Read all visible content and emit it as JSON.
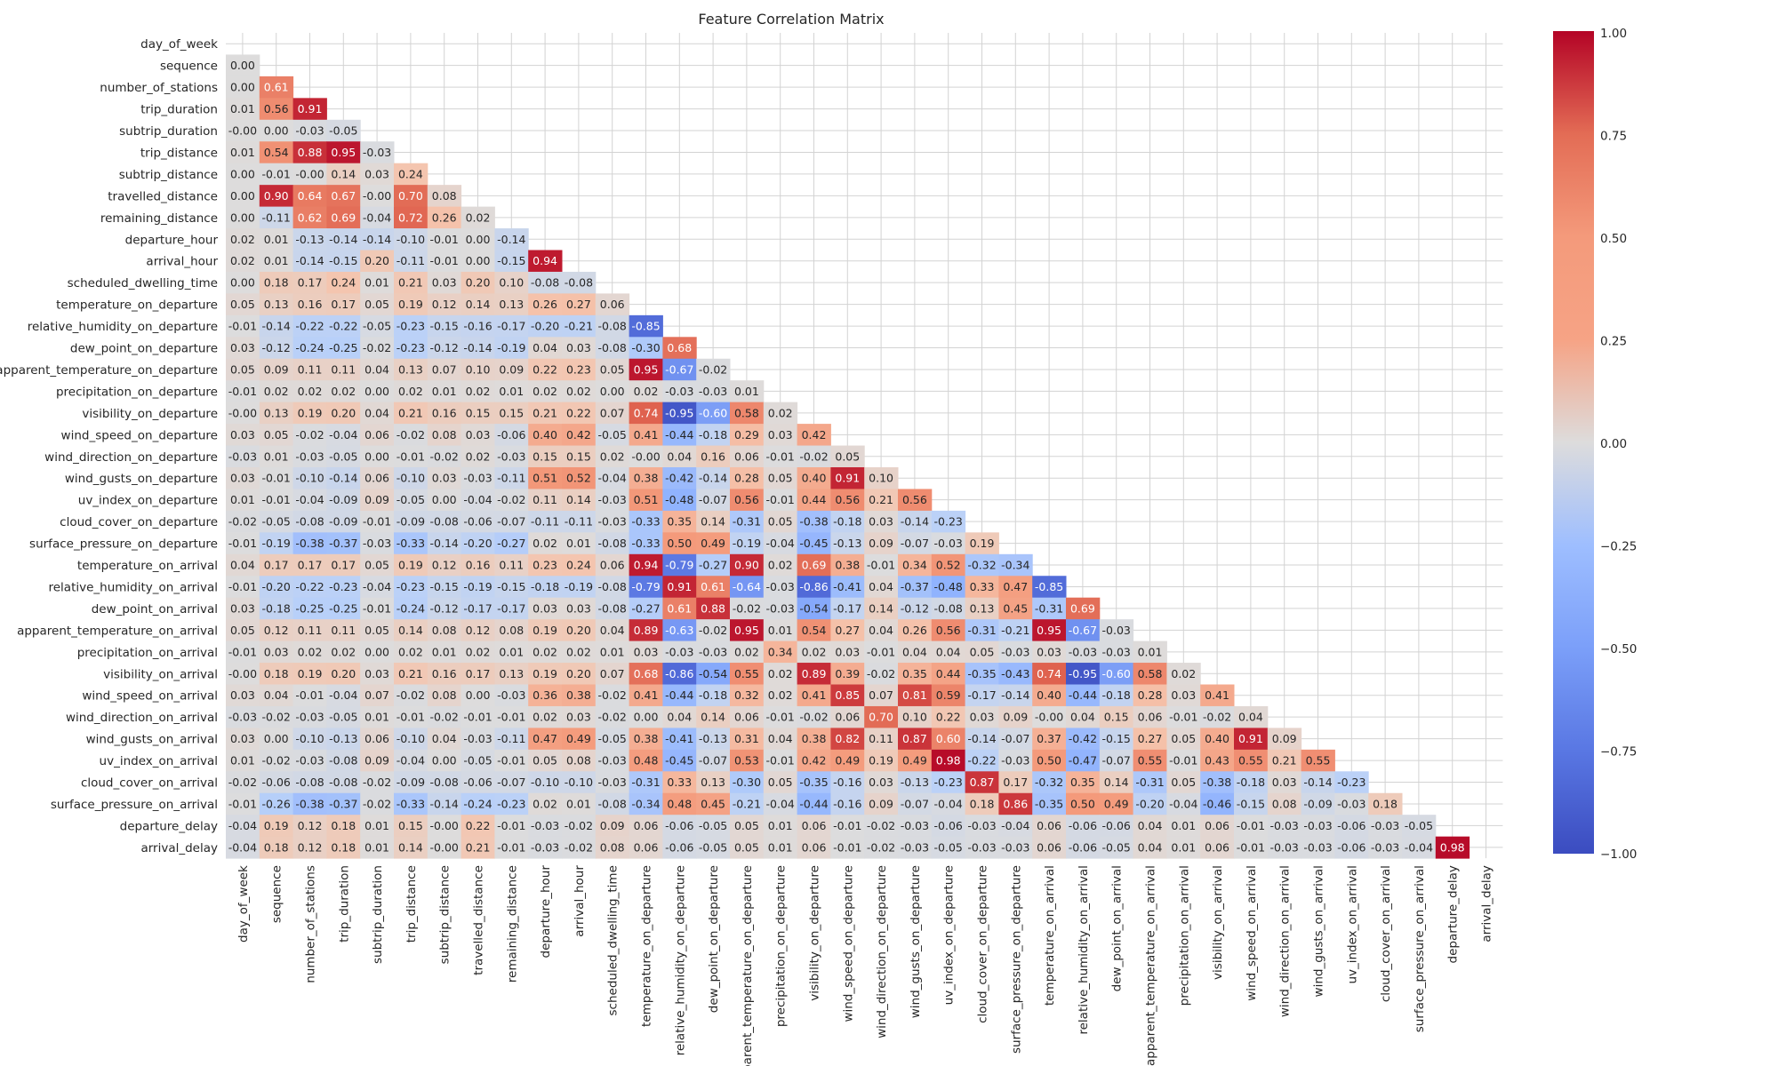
{
  "chart_data": {
    "type": "heatmap",
    "title": "Feature Correlation Matrix",
    "xlabel": "",
    "ylabel": "",
    "mask": "upper-triangle-and-diagonal",
    "colormap": "coolwarm",
    "grid": true,
    "colorbar": {
      "vmin": -1.0,
      "vmax": 1.0,
      "ticks": [
        "1.00",
        "0.75",
        "0.50",
        "0.25",
        "0.00",
        "−0.25",
        "−0.50",
        "−0.75",
        "−1.00"
      ]
    },
    "labels": [
      "day_of_week",
      "sequence",
      "number_of_stations",
      "trip_duration",
      "subtrip_duration",
      "trip_distance",
      "subtrip_distance",
      "travelled_distance",
      "remaining_distance",
      "departure_hour",
      "arrival_hour",
      "scheduled_dwelling_time",
      "temperature_on_departure",
      "relative_humidity_on_departure",
      "dew_point_on_departure",
      "apparent_temperature_on_departure",
      "precipitation_on_departure",
      "visibility_on_departure",
      "wind_speed_on_departure",
      "wind_direction_on_departure",
      "wind_gusts_on_departure",
      "uv_index_on_departure",
      "cloud_cover_on_departure",
      "surface_pressure_on_departure",
      "temperature_on_arrival",
      "relative_humidity_on_arrival",
      "dew_point_on_arrival",
      "apparent_temperature_on_arrival",
      "precipitation_on_arrival",
      "visibility_on_arrival",
      "wind_speed_on_arrival",
      "wind_direction_on_arrival",
      "wind_gusts_on_arrival",
      "uv_index_on_arrival",
      "cloud_cover_on_arrival",
      "surface_pressure_on_arrival",
      "departure_delay",
      "arrival_delay"
    ],
    "rows": [
      [],
      [
        "0.00"
      ],
      [
        "0.00",
        "0.61"
      ],
      [
        "0.01",
        "0.56",
        "0.91"
      ],
      [
        "-0.00",
        "0.00",
        "-0.03",
        "-0.05"
      ],
      [
        "0.01",
        "0.54",
        "0.88",
        "0.95",
        "-0.03"
      ],
      [
        "0.00",
        "-0.01",
        "-0.00",
        "0.14",
        "0.03",
        "0.24"
      ],
      [
        "0.00",
        "0.90",
        "0.64",
        "0.67",
        "-0.00",
        "0.70",
        "0.08"
      ],
      [
        "0.00",
        "-0.11",
        "0.62",
        "0.69",
        "-0.04",
        "0.72",
        "0.26",
        "0.02"
      ],
      [
        "0.02",
        "0.01",
        "-0.13",
        "-0.14",
        "-0.14",
        "-0.10",
        "-0.01",
        "0.00",
        "-0.14"
      ],
      [
        "0.02",
        "0.01",
        "-0.14",
        "-0.15",
        "0.20",
        "-0.11",
        "-0.01",
        "0.00",
        "-0.15",
        "0.94"
      ],
      [
        "0.00",
        "0.18",
        "0.17",
        "0.24",
        "0.01",
        "0.21",
        "0.03",
        "0.20",
        "0.10",
        "-0.08",
        "-0.08"
      ],
      [
        "0.05",
        "0.13",
        "0.16",
        "0.17",
        "0.05",
        "0.19",
        "0.12",
        "0.14",
        "0.13",
        "0.26",
        "0.27",
        "0.06"
      ],
      [
        "-0.01",
        "-0.14",
        "-0.22",
        "-0.22",
        "-0.05",
        "-0.23",
        "-0.15",
        "-0.16",
        "-0.17",
        "-0.20",
        "-0.21",
        "-0.08",
        "-0.85"
      ],
      [
        "0.03",
        "-0.12",
        "-0.24",
        "-0.25",
        "-0.02",
        "-0.23",
        "-0.12",
        "-0.14",
        "-0.19",
        "0.04",
        "0.03",
        "-0.08",
        "-0.30",
        "0.68"
      ],
      [
        "0.05",
        "0.09",
        "0.11",
        "0.11",
        "0.04",
        "0.13",
        "0.07",
        "0.10",
        "0.09",
        "0.22",
        "0.23",
        "0.05",
        "0.95",
        "-0.67",
        "-0.02"
      ],
      [
        "-0.01",
        "0.02",
        "0.02",
        "0.02",
        "0.00",
        "0.02",
        "0.01",
        "0.02",
        "0.01",
        "0.02",
        "0.02",
        "0.00",
        "0.02",
        "-0.03",
        "-0.03",
        "0.01"
      ],
      [
        "-0.00",
        "0.13",
        "0.19",
        "0.20",
        "0.04",
        "0.21",
        "0.16",
        "0.15",
        "0.15",
        "0.21",
        "0.22",
        "0.07",
        "0.74",
        "-0.95",
        "-0.60",
        "0.58",
        "0.02"
      ],
      [
        "0.03",
        "0.05",
        "-0.02",
        "-0.04",
        "0.06",
        "-0.02",
        "0.08",
        "0.03",
        "-0.06",
        "0.40",
        "0.42",
        "-0.05",
        "0.41",
        "-0.44",
        "-0.18",
        "0.29",
        "0.03",
        "0.42"
      ],
      [
        "-0.03",
        "0.01",
        "-0.03",
        "-0.05",
        "0.00",
        "-0.01",
        "-0.02",
        "0.02",
        "-0.03",
        "0.15",
        "0.15",
        "0.02",
        "-0.00",
        "0.04",
        "0.16",
        "0.06",
        "-0.01",
        "-0.02",
        "0.05"
      ],
      [
        "0.03",
        "-0.01",
        "-0.10",
        "-0.14",
        "0.06",
        "-0.10",
        "0.03",
        "-0.03",
        "-0.11",
        "0.51",
        "0.52",
        "-0.04",
        "0.38",
        "-0.42",
        "-0.14",
        "0.28",
        "0.05",
        "0.40",
        "0.91",
        "0.10"
      ],
      [
        "0.01",
        "-0.01",
        "-0.04",
        "-0.09",
        "0.09",
        "-0.05",
        "0.00",
        "-0.04",
        "-0.02",
        "0.11",
        "0.14",
        "-0.03",
        "0.51",
        "-0.48",
        "-0.07",
        "0.56",
        "-0.01",
        "0.44",
        "0.56",
        "0.21",
        "0.56"
      ],
      [
        "-0.02",
        "-0.05",
        "-0.08",
        "-0.09",
        "-0.01",
        "-0.09",
        "-0.08",
        "-0.06",
        "-0.07",
        "-0.11",
        "-0.11",
        "-0.03",
        "-0.33",
        "0.35",
        "0.14",
        "-0.31",
        "0.05",
        "-0.38",
        "-0.18",
        "0.03",
        "-0.14",
        "-0.23"
      ],
      [
        "-0.01",
        "-0.19",
        "-0.38",
        "-0.37",
        "-0.03",
        "-0.33",
        "-0.14",
        "-0.20",
        "-0.27",
        "0.02",
        "0.01",
        "-0.08",
        "-0.33",
        "0.50",
        "0.49",
        "-0.19",
        "-0.04",
        "-0.45",
        "-0.13",
        "0.09",
        "-0.07",
        "-0.03",
        "0.19"
      ],
      [
        "0.04",
        "0.17",
        "0.17",
        "0.17",
        "0.05",
        "0.19",
        "0.12",
        "0.16",
        "0.11",
        "0.23",
        "0.24",
        "0.06",
        "0.94",
        "-0.79",
        "-0.27",
        "0.90",
        "0.02",
        "0.69",
        "0.38",
        "-0.01",
        "0.34",
        "0.52",
        "-0.32",
        "-0.34"
      ],
      [
        "-0.01",
        "-0.20",
        "-0.22",
        "-0.23",
        "-0.04",
        "-0.23",
        "-0.15",
        "-0.19",
        "-0.15",
        "-0.18",
        "-0.19",
        "-0.08",
        "-0.79",
        "0.91",
        "0.61",
        "-0.64",
        "-0.03",
        "-0.86",
        "-0.41",
        "0.04",
        "-0.37",
        "-0.48",
        "0.33",
        "0.47",
        "-0.85"
      ],
      [
        "0.03",
        "-0.18",
        "-0.25",
        "-0.25",
        "-0.01",
        "-0.24",
        "-0.12",
        "-0.17",
        "-0.17",
        "0.03",
        "0.03",
        "-0.08",
        "-0.27",
        "0.61",
        "0.88",
        "-0.02",
        "-0.03",
        "-0.54",
        "-0.17",
        "0.14",
        "-0.12",
        "-0.08",
        "0.13",
        "0.45",
        "-0.31",
        "0.69"
      ],
      [
        "0.05",
        "0.12",
        "0.11",
        "0.11",
        "0.05",
        "0.14",
        "0.08",
        "0.12",
        "0.08",
        "0.19",
        "0.20",
        "0.04",
        "0.89",
        "-0.63",
        "-0.02",
        "0.95",
        "0.01",
        "0.54",
        "0.27",
        "0.04",
        "0.26",
        "0.56",
        "-0.31",
        "-0.21",
        "0.95",
        "-0.67",
        "-0.03"
      ],
      [
        "-0.01",
        "0.03",
        "0.02",
        "0.02",
        "0.00",
        "0.02",
        "0.01",
        "0.02",
        "0.01",
        "0.02",
        "0.02",
        "0.01",
        "0.03",
        "-0.03",
        "-0.03",
        "0.02",
        "0.34",
        "0.02",
        "0.03",
        "-0.01",
        "0.04",
        "0.04",
        "0.05",
        "-0.03",
        "0.03",
        "-0.03",
        "-0.03",
        "0.01"
      ],
      [
        "-0.00",
        "0.18",
        "0.19",
        "0.20",
        "0.03",
        "0.21",
        "0.16",
        "0.17",
        "0.13",
        "0.19",
        "0.20",
        "0.07",
        "0.68",
        "-0.86",
        "-0.54",
        "0.55",
        "0.02",
        "0.89",
        "0.39",
        "-0.02",
        "0.35",
        "0.44",
        "-0.35",
        "-0.43",
        "0.74",
        "-0.95",
        "-0.60",
        "0.58",
        "0.02"
      ],
      [
        "0.03",
        "0.04",
        "-0.01",
        "-0.04",
        "0.07",
        "-0.02",
        "0.08",
        "0.00",
        "-0.03",
        "0.36",
        "0.38",
        "-0.02",
        "0.41",
        "-0.44",
        "-0.18",
        "0.32",
        "0.02",
        "0.41",
        "0.85",
        "0.07",
        "0.81",
        "0.59",
        "-0.17",
        "-0.14",
        "0.40",
        "-0.44",
        "-0.18",
        "0.28",
        "0.03",
        "0.41"
      ],
      [
        "-0.03",
        "-0.02",
        "-0.03",
        "-0.05",
        "0.01",
        "-0.01",
        "-0.02",
        "-0.01",
        "-0.01",
        "0.02",
        "0.03",
        "-0.02",
        "0.00",
        "0.04",
        "0.14",
        "0.06",
        "-0.01",
        "-0.02",
        "0.06",
        "0.70",
        "0.10",
        "0.22",
        "0.03",
        "0.09",
        "-0.00",
        "0.04",
        "0.15",
        "0.06",
        "-0.01",
        "-0.02",
        "0.04"
      ],
      [
        "0.03",
        "0.00",
        "-0.10",
        "-0.13",
        "0.06",
        "-0.10",
        "0.04",
        "-0.03",
        "-0.11",
        "0.47",
        "0.49",
        "-0.05",
        "0.38",
        "-0.41",
        "-0.13",
        "0.31",
        "0.04",
        "0.38",
        "0.82",
        "0.11",
        "0.87",
        "0.60",
        "-0.14",
        "-0.07",
        "0.37",
        "-0.42",
        "-0.15",
        "0.27",
        "0.05",
        "0.40",
        "0.91",
        "0.09"
      ],
      [
        "0.01",
        "-0.02",
        "-0.03",
        "-0.08",
        "0.09",
        "-0.04",
        "0.00",
        "-0.05",
        "-0.01",
        "0.05",
        "0.08",
        "-0.03",
        "0.48",
        "-0.45",
        "-0.07",
        "0.53",
        "-0.01",
        "0.42",
        "0.49",
        "0.19",
        "0.49",
        "0.98",
        "-0.22",
        "-0.03",
        "0.50",
        "-0.47",
        "-0.07",
        "0.55",
        "-0.01",
        "0.43",
        "0.55",
        "0.21",
        "0.55"
      ],
      [
        "-0.02",
        "-0.06",
        "-0.08",
        "-0.08",
        "-0.02",
        "-0.09",
        "-0.08",
        "-0.06",
        "-0.07",
        "-0.10",
        "-0.10",
        "-0.03",
        "-0.31",
        "0.33",
        "0.13",
        "-0.30",
        "0.05",
        "-0.35",
        "-0.16",
        "0.03",
        "-0.13",
        "-0.23",
        "0.87",
        "0.17",
        "-0.32",
        "0.35",
        "0.14",
        "-0.31",
        "0.05",
        "-0.38",
        "-0.18",
        "0.03",
        "-0.14",
        "-0.23"
      ],
      [
        "-0.01",
        "-0.26",
        "-0.38",
        "-0.37",
        "-0.02",
        "-0.33",
        "-0.14",
        "-0.24",
        "-0.23",
        "0.02",
        "0.01",
        "-0.08",
        "-0.34",
        "0.48",
        "0.45",
        "-0.21",
        "-0.04",
        "-0.44",
        "-0.16",
        "0.09",
        "-0.07",
        "-0.04",
        "0.18",
        "0.86",
        "-0.35",
        "0.50",
        "0.49",
        "-0.20",
        "-0.04",
        "-0.46",
        "-0.15",
        "0.08",
        "-0.09",
        "-0.03",
        "0.18"
      ],
      [
        "-0.04",
        "0.19",
        "0.12",
        "0.18",
        "0.01",
        "0.15",
        "-0.00",
        "0.22",
        "-0.01",
        "-0.03",
        "-0.02",
        "0.09",
        "0.06",
        "-0.06",
        "-0.05",
        "0.05",
        "0.01",
        "0.06",
        "-0.01",
        "-0.02",
        "-0.03",
        "-0.06",
        "-0.03",
        "-0.04",
        "0.06",
        "-0.06",
        "-0.06",
        "0.04",
        "0.01",
        "0.06",
        "-0.01",
        "-0.03",
        "-0.03",
        "-0.06",
        "-0.03",
        "-0.05"
      ],
      [
        "-0.04",
        "0.18",
        "0.12",
        "0.18",
        "0.01",
        "0.14",
        "-0.00",
        "0.21",
        "-0.01",
        "-0.03",
        "-0.02",
        "0.08",
        "0.06",
        "-0.06",
        "-0.05",
        "0.05",
        "0.01",
        "0.06",
        "-0.01",
        "-0.02",
        "-0.03",
        "-0.05",
        "-0.03",
        "-0.03",
        "0.06",
        "-0.06",
        "-0.05",
        "0.04",
        "0.01",
        "0.06",
        "-0.01",
        "-0.03",
        "-0.03",
        "-0.06",
        "-0.03",
        "-0.04",
        "0.98"
      ]
    ]
  }
}
